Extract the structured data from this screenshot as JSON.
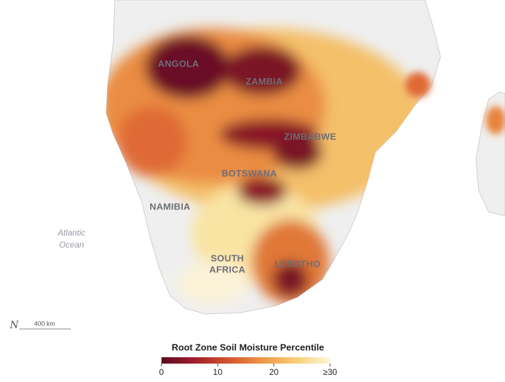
{
  "map": {
    "labels": [
      {
        "lines": [
          "ANGOLA"
        ]
      },
      {
        "lines": [
          "ZAMBIA"
        ]
      },
      {
        "lines": [
          "ZIMBABWE"
        ]
      },
      {
        "lines": [
          "BOTSWANA"
        ]
      },
      {
        "lines": [
          "NAMIBIA"
        ]
      },
      {
        "lines": [
          "SOUTH",
          "AFRICA"
        ]
      },
      {
        "lines": [
          "LESOTHO"
        ]
      }
    ],
    "ocean": [
      "Atlantic",
      "Ocean"
    ],
    "north": "N",
    "scale_bar": "400 km"
  },
  "legend": {
    "title": "Root Zone Soil Moisture Percentile",
    "lim": [
      0,
      30
    ],
    "ticks": [
      0,
      10,
      20,
      {
        "value": 30,
        "label": "≥30"
      }
    ],
    "colors": [
      "#5e0a22",
      "#9e1f2c",
      "#d4552f",
      "#ee9845",
      "#f7cf78",
      "#fdf7d6"
    ]
  }
}
